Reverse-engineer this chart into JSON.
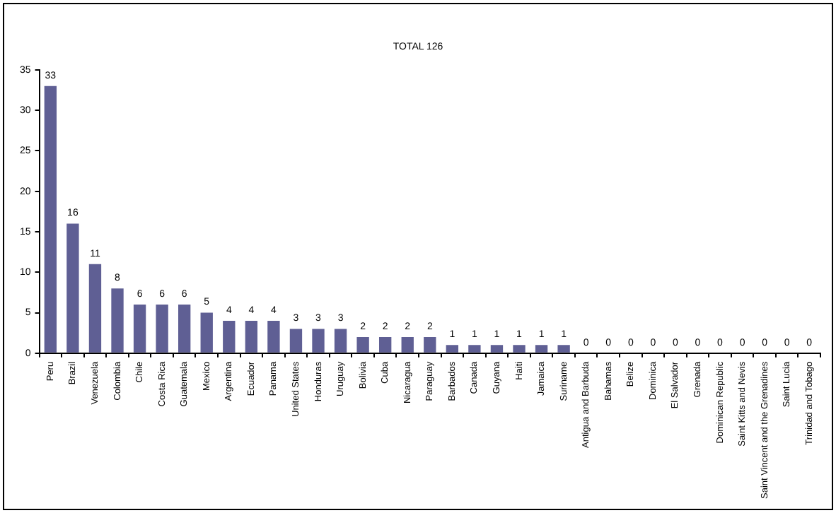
{
  "chart_data": {
    "type": "bar",
    "title": "TOTAL 126",
    "categories": [
      "Peru",
      "Brazil",
      "Venezuela",
      "Colombia",
      "Chile",
      "Costa Rica",
      "Guatemala",
      "Mexico",
      "Argentina",
      "Ecuador",
      "Panama",
      "United States",
      "Honduras",
      "Uruguay",
      "Bolivia",
      "Cuba",
      "Nicaragua",
      "Paraguay",
      "Barbados",
      "Canada",
      "Guyana",
      "Haiti",
      "Jamaica",
      "Suriname",
      "Antigua and Barbuda",
      "Bahamas",
      "Belize",
      "Dominica",
      "El Salvador",
      "Grenada",
      "Dominican Republic",
      "Saint Kitts and Nevis",
      "Saint Vincent and the Grenadines",
      "Saint Lucia",
      "Trinidad and Tobago"
    ],
    "values": [
      33,
      16,
      11,
      8,
      6,
      6,
      6,
      5,
      4,
      4,
      4,
      3,
      3,
      3,
      2,
      2,
      2,
      2,
      1,
      1,
      1,
      1,
      1,
      1,
      0,
      0,
      0,
      0,
      0,
      0,
      0,
      0,
      0,
      0,
      0
    ],
    "color": "#5f5f94",
    "ylim": [
      0,
      35
    ],
    "yticks": [
      0,
      5,
      10,
      15,
      20,
      25,
      30,
      35
    ],
    "grid": false,
    "legend": false,
    "data_labels": true
  }
}
